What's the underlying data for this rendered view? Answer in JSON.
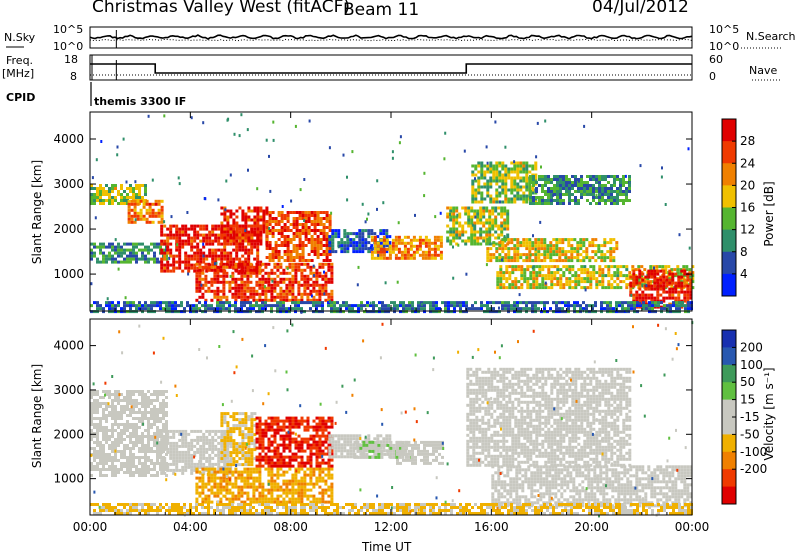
{
  "header": {
    "station": "Christmas Valley West (fitACF)",
    "beam": "Beam 11",
    "date": "04/Jul/2012"
  },
  "top_panels": {
    "nsky_label": "N.Sky",
    "nsky_tick_hi": "10^5",
    "nsky_tick_lo": "10^0",
    "nsearch_label": "N.Search",
    "freq_label": "Freq.",
    "freq_unit": "[MHz]",
    "freq_tick_hi": "18",
    "freq_tick_lo": "8",
    "nave_tick_hi": "60",
    "nave_tick_lo": "0",
    "nave_label": "Nave",
    "cpid_label": "CPID",
    "cpid_value": "themis 3300 IF"
  },
  "colors": {
    "power": [
      "#0020ff",
      "#2848a8",
      "#2f8f6a",
      "#55b530",
      "#f0c000",
      "#f08000",
      "#f03a00",
      "#e00000"
    ],
    "velocity": [
      "#e00000",
      "#f03a00",
      "#f08000",
      "#f0b000",
      "#c8c8c0",
      "#c8c8c0",
      "#60c040",
      "#3e9a5a",
      "#2858b0",
      "#1830b0"
    ]
  },
  "chart_data": [
    {
      "type": "heatmap",
      "panel": "power",
      "xlabel": "",
      "ylabel": "Slant Range [km]",
      "y_ticks": [
        1000,
        2000,
        3000,
        4000
      ],
      "ylim": [
        180,
        4600
      ],
      "x_ticks": [
        "00:00",
        "04:00",
        "08:00",
        "12:00",
        "16:00",
        "20:00",
        "00:00"
      ],
      "xlim_hours": [
        0,
        24
      ],
      "colorbar": {
        "label": "Power [dB]",
        "ticks": [
          "4",
          "8",
          "12",
          "16",
          "20",
          "24",
          "28"
        ],
        "range": [
          0,
          30
        ]
      },
      "features": [
        {
          "t0": 0.0,
          "t1": 2.2,
          "r0": 2550,
          "r1": 3000,
          "value": 14
        },
        {
          "t0": 1.5,
          "t1": 2.9,
          "r0": 2150,
          "r1": 2650,
          "value": 22
        },
        {
          "t0": 0.0,
          "t1": 3.0,
          "r0": 1300,
          "r1": 1700,
          "value": 10
        },
        {
          "t0": 2.8,
          "t1": 6.8,
          "r0": 1100,
          "r1": 2100,
          "value": 27
        },
        {
          "t0": 5.2,
          "t1": 7.0,
          "r0": 1700,
          "r1": 2500,
          "value": 26
        },
        {
          "t0": 4.2,
          "t1": 9.6,
          "r0": 450,
          "r1": 1250,
          "value": 25
        },
        {
          "t0": 7.0,
          "t1": 9.6,
          "r0": 1300,
          "r1": 2400,
          "value": 24
        },
        {
          "t0": 9.5,
          "t1": 12.0,
          "r0": 1500,
          "r1": 2000,
          "value": 6
        },
        {
          "t0": 11.2,
          "t1": 14.0,
          "r0": 1350,
          "r1": 1850,
          "value": 20
        },
        {
          "t0": 14.2,
          "t1": 16.6,
          "r0": 1650,
          "r1": 2500,
          "value": 15
        },
        {
          "t0": 15.8,
          "t1": 21.0,
          "r0": 1300,
          "r1": 1800,
          "value": 17
        },
        {
          "t0": 15.2,
          "t1": 17.8,
          "r0": 2600,
          "r1": 3500,
          "value": 14
        },
        {
          "t0": 17.5,
          "t1": 21.5,
          "r0": 2550,
          "r1": 3200,
          "value": 10
        },
        {
          "t0": 16.2,
          "t1": 24.0,
          "r0": 700,
          "r1": 1200,
          "value": 16
        },
        {
          "t0": 21.5,
          "t1": 24.0,
          "r0": 300,
          "r1": 1100,
          "value": 27
        },
        {
          "t0": 0.0,
          "t1": 24.0,
          "r0": 180,
          "r1": 400,
          "value": 7
        }
      ]
    },
    {
      "type": "heatmap",
      "panel": "velocity",
      "xlabel": "Time UT",
      "ylabel": "Slant Range [km]",
      "y_ticks": [
        1000,
        2000,
        3000,
        4000
      ],
      "ylim": [
        180,
        4600
      ],
      "x_ticks": [
        "00:00",
        "04:00",
        "08:00",
        "12:00",
        "16:00",
        "20:00",
        "00:00"
      ],
      "xlim_hours": [
        0,
        24
      ],
      "colorbar": {
        "label": "Velocity [m s⁻¹]",
        "ticks": [
          "200",
          "100",
          "50",
          "15",
          "-15",
          "-50",
          "-100",
          "-200"
        ],
        "range": [
          -250,
          250
        ]
      },
      "features": [
        {
          "t0": 0.0,
          "t1": 3.0,
          "r0": 1100,
          "r1": 3000,
          "value": 0
        },
        {
          "t0": 2.8,
          "t1": 5.6,
          "r0": 1100,
          "r1": 2100,
          "value": 0
        },
        {
          "t0": 5.2,
          "t1": 6.6,
          "r0": 1300,
          "r1": 2500,
          "value": -60
        },
        {
          "t0": 4.2,
          "t1": 9.6,
          "r0": 450,
          "r1": 1250,
          "value": -90
        },
        {
          "t0": 6.6,
          "t1": 9.6,
          "r0": 1300,
          "r1": 2400,
          "value": -200
        },
        {
          "t0": 9.5,
          "t1": 12.0,
          "r0": 1500,
          "r1": 2000,
          "value": 0
        },
        {
          "t0": 10.5,
          "t1": 12.8,
          "r0": 1450,
          "r1": 1850,
          "value": 40
        },
        {
          "t0": 12.2,
          "t1": 14.0,
          "r0": 1350,
          "r1": 1850,
          "value": 0
        },
        {
          "t0": 15.0,
          "t1": 21.5,
          "r0": 1300,
          "r1": 3500,
          "value": 0
        },
        {
          "t0": 16.0,
          "t1": 24.0,
          "r0": 400,
          "r1": 1300,
          "value": 0
        },
        {
          "t0": 0.0,
          "t1": 24.0,
          "r0": 180,
          "r1": 450,
          "value": -60
        }
      ]
    }
  ]
}
